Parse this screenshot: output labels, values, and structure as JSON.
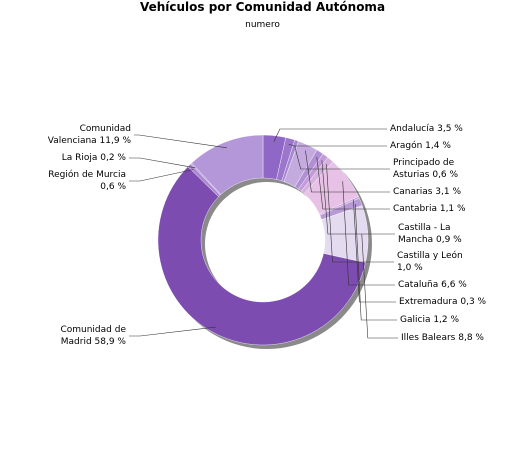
{
  "chart_data": {
    "type": "pie",
    "variant": "donut",
    "title": "Vehículos por Comunidad Autónoma",
    "subtitle": "numero",
    "legend": "none",
    "slices": [
      {
        "name": "Andalucía",
        "value": 3.5,
        "label": "Andalucía 3,5 %",
        "color": "#8f67c6"
      },
      {
        "name": "Aragón",
        "value": 1.4,
        "label": "Aragón 1,4 %",
        "color": "#9b76cc"
      },
      {
        "name": "Principado de Asturias",
        "value": 0.6,
        "label": "Principado de Asturias 0,6 %",
        "color": "#a886d2"
      },
      {
        "name": "Canarias",
        "value": 3.1,
        "label": "Canarias 3,1 %",
        "color": "#c4aadf"
      },
      {
        "name": "Cantabria",
        "value": 1.1,
        "label": "Cantabria 1,1 %",
        "color": "#b18fd4"
      },
      {
        "name": "Castilla - La Mancha",
        "value": 0.9,
        "label": "Castilla - La Mancha 0,9 %",
        "color": "#c39bd9"
      },
      {
        "name": "Castilla y León",
        "value": 1.0,
        "label": "Castilla y León 1,0 %",
        "color": "#d6b1e0"
      },
      {
        "name": "Cataluña",
        "value": 6.6,
        "label": "Cataluña 6,6 %",
        "color": "#e8c2e6"
      },
      {
        "name": "Extremadura",
        "value": 0.3,
        "label": "Extremadura 0,3 %",
        "color": "#c8a6dc"
      },
      {
        "name": "Galicia",
        "value": 1.2,
        "label": "Galicia 1,2 %",
        "color": "#b89bd6"
      },
      {
        "name": "Illes Balears",
        "value": 8.8,
        "label": "Illes Balears 8,8 %",
        "color": "#e4dbf0"
      },
      {
        "name": "Comunidad de Madrid",
        "value": 58.9,
        "label": "Comunidad de Madrid 58,9 %",
        "color": "#7c4cb0"
      },
      {
        "name": "Región de Murcia",
        "value": 0.6,
        "label": "Región de Murcia 0,6 %",
        "color": "#a988d0"
      },
      {
        "name": "La Rioja",
        "value": 0.2,
        "label": "La Rioja 0,2 %",
        "color": "#b69adb"
      },
      {
        "name": "Comunidad Valenciana",
        "value": 11.9,
        "label": "Comunidad Valenciana 11,9 %",
        "color": "#b497d8"
      }
    ]
  },
  "label_lines": {
    "Andalucía": [
      "Andalucía 3,5 %"
    ],
    "Aragón": [
      "Aragón 1,4 %"
    ],
    "Principado de Asturias": [
      "Principado de",
      "Asturias 0,6 %"
    ],
    "Canarias": [
      "Canarias 3,1 %"
    ],
    "Cantabria": [
      "Cantabria 1,1 %"
    ],
    "Castilla - La Mancha": [
      "Castilla - La",
      "Mancha 0,9 %"
    ],
    "Castilla y León": [
      "Castilla y León",
      "1,0 %"
    ],
    "Cataluña": [
      "Cataluña 6,6 %"
    ],
    "Extremadura": [
      "Extremadura 0,3 %"
    ],
    "Galicia": [
      "Galicia 1,2 %"
    ],
    "Illes Balears": [
      "Illes Balears 8,8 %"
    ],
    "Comunidad de Madrid": [
      "Comunidad de",
      "Madrid 58,9 %"
    ],
    "Región de Murcia": [
      "Región de Murcia",
      "0,6 %"
    ],
    "La Rioja": [
      "La Rioja 0,2 %"
    ],
    "Comunidad Valenciana": [
      "Comunidad",
      "Valenciana 11,9 %"
    ]
  }
}
